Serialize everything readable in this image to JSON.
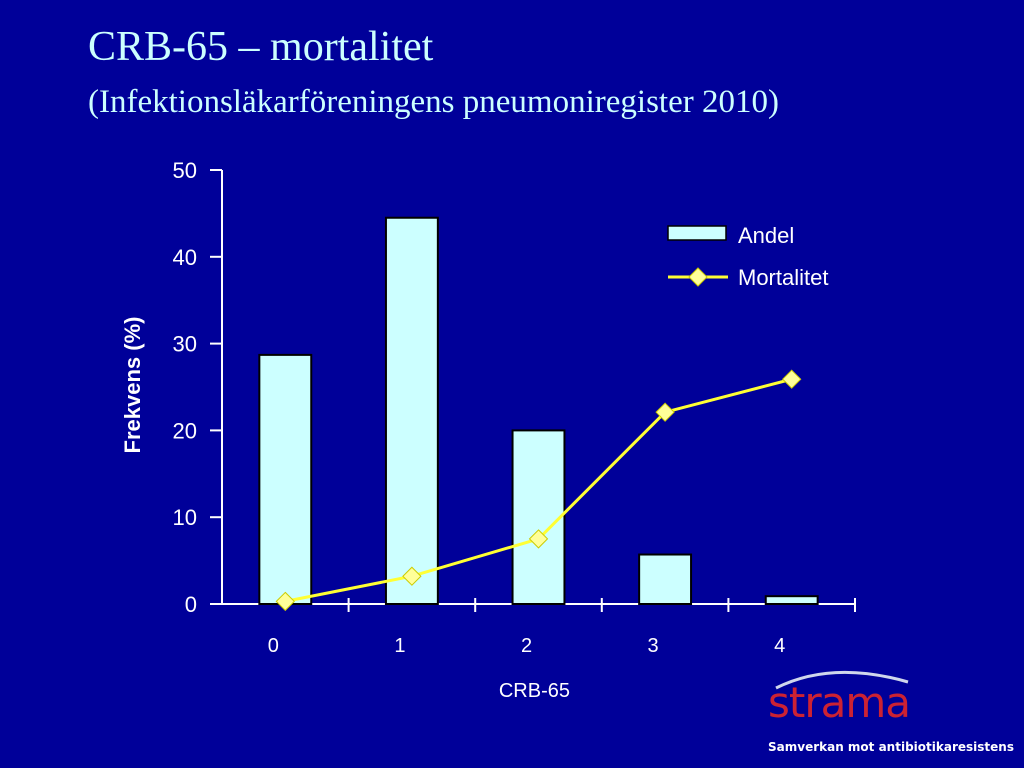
{
  "slide": {
    "title": "CRB-65 – mortalitet",
    "subtitle": "(Infektionsläkarföreningens pneumoniregister 2010)"
  },
  "logo": {
    "wordmark": "strama",
    "tagline": "Samverkan mot antibiotikaresistens"
  },
  "colors": {
    "background": "#000099",
    "title": "#ccffff",
    "bar_fill": "#ccffff",
    "line": "#ffff33",
    "marker": "#ffff99",
    "axis": "#ffffff"
  },
  "chart_data": {
    "type": "bar",
    "title": "",
    "xlabel": "CRB-65",
    "ylabel": "Frekvens (%)",
    "categories": [
      "0",
      "1",
      "2",
      "3",
      "4"
    ],
    "ylim": [
      0,
      50
    ],
    "yticks": [
      0,
      10,
      20,
      30,
      40,
      50
    ],
    "grid": false,
    "legend_position": "top-right",
    "series": [
      {
        "name": "Andel",
        "type": "bar",
        "values": [
          28.7,
          44.5,
          20.0,
          5.7,
          0.9
        ]
      },
      {
        "name": "Mortalitet",
        "type": "line",
        "marker": "diamond",
        "values": [
          0.3,
          3.2,
          7.5,
          22.1,
          25.9
        ]
      }
    ]
  }
}
